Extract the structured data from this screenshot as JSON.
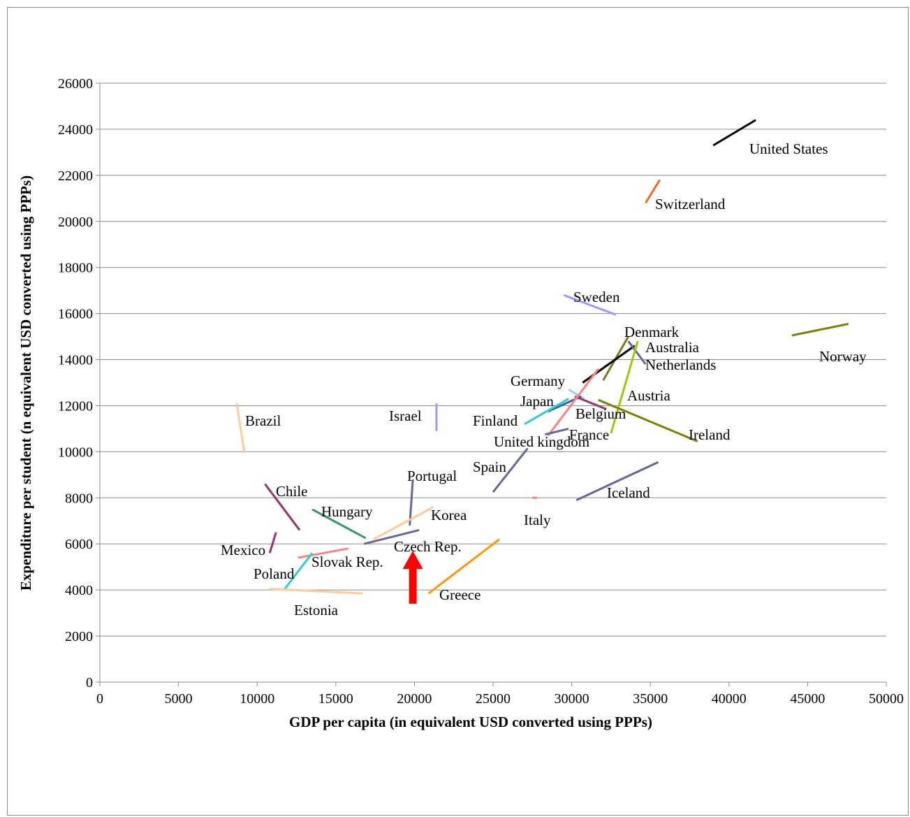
{
  "chart_data": {
    "type": "line",
    "xlabel": "GDP per capita (in equivalent USD converted using PPPs)",
    "ylabel": "Expenditure per student (n equivalent USD converted using PPPs)",
    "xlim": [
      0,
      50000
    ],
    "ylim": [
      0,
      26000
    ],
    "x_ticks": [
      0,
      5000,
      10000,
      15000,
      20000,
      25000,
      30000,
      35000,
      40000,
      45000,
      50000
    ],
    "y_ticks": [
      0,
      2000,
      4000,
      6000,
      8000,
      10000,
      12000,
      14000,
      16000,
      18000,
      20000,
      22000,
      24000,
      26000
    ],
    "grid": "horizontal",
    "legend": "none",
    "series": [
      {
        "name": "United States",
        "color": "#000000",
        "points": [
          [
            39000,
            23300
          ],
          [
            41700,
            24400
          ]
        ]
      },
      {
        "name": "Switzerland",
        "color": "#f26a1b",
        "points": [
          [
            34700,
            20800
          ],
          [
            35600,
            21800
          ]
        ]
      },
      {
        "name": "Sweden",
        "color": "#9999ff",
        "points": [
          [
            29500,
            16800
          ],
          [
            32800,
            15950
          ]
        ]
      },
      {
        "name": "Norway",
        "color": "#7f7f00",
        "points": [
          [
            44000,
            15050
          ],
          [
            47600,
            15550
          ]
        ]
      },
      {
        "name": "Denmark",
        "color": "#7a7a1c",
        "points": [
          [
            32000,
            13100
          ],
          [
            33600,
            15000
          ]
        ]
      },
      {
        "name": "Australia",
        "color": "#000000",
        "points": [
          [
            30700,
            13000
          ],
          [
            34000,
            14600
          ]
        ]
      },
      {
        "name": "Netherlands",
        "color": "#666699",
        "points": [
          [
            33600,
            14800
          ],
          [
            34700,
            13800
          ]
        ]
      },
      {
        "name": "Germany",
        "color": "#99ccff",
        "points": [
          [
            29800,
            12700
          ],
          [
            30800,
            12300
          ]
        ]
      },
      {
        "name": "Austria",
        "color": "#99cc00",
        "points": [
          [
            32500,
            10800
          ],
          [
            34200,
            14800
          ]
        ]
      },
      {
        "name": "Japan",
        "color": "#336699",
        "points": [
          [
            28500,
            11750
          ],
          [
            30600,
            12400
          ]
        ]
      },
      {
        "name": "Finland",
        "color": "#33cccc",
        "points": [
          [
            27000,
            11200
          ],
          [
            29800,
            12300
          ]
        ]
      },
      {
        "name": "Belgium",
        "color": "#993366",
        "points": [
          [
            30200,
            12400
          ],
          [
            32200,
            11850
          ]
        ]
      },
      {
        "name": "France",
        "color": "#ff8080",
        "points": [
          [
            28500,
            10700
          ],
          [
            31700,
            13600
          ]
        ]
      },
      {
        "name": "United kingdom",
        "color": "#666699",
        "points": [
          [
            28300,
            10750
          ],
          [
            29800,
            11000
          ]
        ]
      },
      {
        "name": "Ireland",
        "color": "#7f7f00",
        "points": [
          [
            31700,
            12250
          ],
          [
            38000,
            10450
          ]
        ]
      },
      {
        "name": "Israel",
        "color": "#9999ff",
        "points": [
          [
            21400,
            12100
          ],
          [
            21400,
            10900
          ]
        ]
      },
      {
        "name": "Brazil",
        "color": "#ffcc99",
        "points": [
          [
            8700,
            12100
          ],
          [
            9200,
            9950
          ]
        ]
      },
      {
        "name": "Spain",
        "color": "#666699",
        "points": [
          [
            25000,
            8250
          ],
          [
            27200,
            10150
          ]
        ]
      },
      {
        "name": "Iceland",
        "color": "#666699",
        "points": [
          [
            30300,
            7900
          ],
          [
            35500,
            9550
          ]
        ]
      },
      {
        "name": "Portugal",
        "color": "#666699",
        "points": [
          [
            19700,
            6800
          ],
          [
            19900,
            8800
          ]
        ]
      },
      {
        "name": "Italy",
        "color": "#ff8080",
        "points": [
          [
            27500,
            8000
          ],
          [
            27800,
            8000
          ]
        ]
      },
      {
        "name": "Korea",
        "color": "#ffcc99",
        "points": [
          [
            17400,
            6200
          ],
          [
            21200,
            7600
          ]
        ]
      },
      {
        "name": "Chile",
        "color": "#993366",
        "points": [
          [
            10500,
            8600
          ],
          [
            12700,
            6600
          ]
        ]
      },
      {
        "name": "Hungary",
        "color": "#339966",
        "points": [
          [
            13500,
            7500
          ],
          [
            16900,
            6250
          ]
        ]
      },
      {
        "name": "Czech Rep.",
        "color": "#666699",
        "points": [
          [
            16800,
            6000
          ],
          [
            20300,
            6600
          ]
        ]
      },
      {
        "name": "Mexico",
        "color": "#993366",
        "points": [
          [
            10800,
            5600
          ],
          [
            11200,
            6500
          ]
        ]
      },
      {
        "name": "Slovak Rep.",
        "color": "#ff8080",
        "points": [
          [
            12600,
            5400
          ],
          [
            15800,
            5800
          ]
        ]
      },
      {
        "name": "Poland",
        "color": "#33cccc",
        "points": [
          [
            11700,
            4000
          ],
          [
            13500,
            5600
          ]
        ]
      },
      {
        "name": "Estonia",
        "color": "#ffcc99",
        "points": [
          [
            10800,
            4050
          ],
          [
            16700,
            3850
          ]
        ]
      },
      {
        "name": "Greece",
        "color": "#ff9900",
        "points": [
          [
            20900,
            3850
          ],
          [
            25400,
            6200
          ]
        ]
      }
    ],
    "annotations": [
      {
        "type": "arrow",
        "color": "#ff0000",
        "x": 19900,
        "y_from": 3400,
        "y_to": 5700
      }
    ]
  }
}
